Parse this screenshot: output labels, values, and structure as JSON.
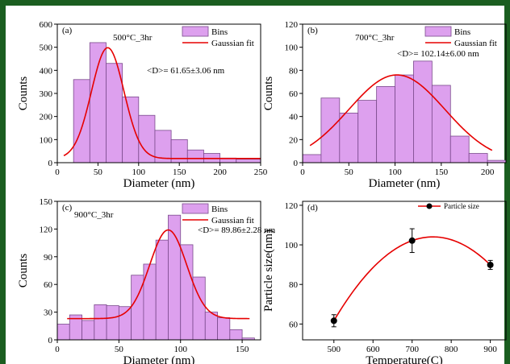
{
  "chart_data": [
    {
      "type": "bar",
      "panel": "(a)",
      "annotation": "500°C_3hr",
      "stat": "<D>= 61.65±3.06 nm",
      "xlabel": "Diameter (nm)",
      "ylabel": "Counts",
      "xlim": [
        0,
        250
      ],
      "ylim": [
        0,
        600
      ],
      "xticks": [
        0,
        50,
        100,
        150,
        200,
        250
      ],
      "yticks": [
        0,
        100,
        200,
        300,
        400,
        500,
        600
      ],
      "bin_edges": [
        20,
        40,
        60,
        80,
        100,
        120,
        140,
        160,
        180,
        200,
        220,
        250
      ],
      "values": [
        360,
        520,
        430,
        285,
        205,
        140,
        100,
        55,
        40,
        20,
        15
      ],
      "fit": {
        "label": "Gaussian fit",
        "baseline": 18,
        "amplitude": 480,
        "center": 62,
        "sigma": 20,
        "x_from": 8,
        "x_to": 250
      },
      "legend": [
        "Bins",
        "Gaussian fit"
      ]
    },
    {
      "type": "bar",
      "panel": "(b)",
      "annotation": "700°C_3hr",
      "stat": "<D>= 102.14±6.00 nm",
      "xlabel": "Diameter (nm)",
      "ylabel": "Counts",
      "xlim": [
        0,
        220
      ],
      "ylim": [
        0,
        120
      ],
      "xticks": [
        0,
        50,
        100,
        150,
        200
      ],
      "yticks": [
        0,
        20,
        40,
        60,
        80,
        100,
        120
      ],
      "bin_edges": [
        0,
        20,
        40,
        60,
        80,
        100,
        120,
        140,
        160,
        180,
        200,
        220
      ],
      "values": [
        7,
        56,
        43,
        54,
        66,
        76,
        88,
        67,
        23,
        8,
        2
      ],
      "fit": {
        "label": "Gaussian fit",
        "baseline": 0,
        "amplitude": 76,
        "center": 102,
        "sigma": 52,
        "x_from": 8,
        "x_to": 205
      },
      "legend": [
        "Bins",
        "Gaussian fit"
      ]
    },
    {
      "type": "bar",
      "panel": "(c)",
      "annotation": "900°C_3hr",
      "stat": "<D>= 89.86±2.28 nm",
      "xlabel": "Diameter (nm)",
      "ylabel": "Counts",
      "xlim": [
        0,
        165
      ],
      "ylim": [
        0,
        150
      ],
      "xticks": [
        0,
        50,
        100,
        150
      ],
      "yticks": [
        0,
        30,
        60,
        90,
        120,
        150
      ],
      "bin_edges": [
        0,
        10,
        20,
        30,
        40,
        50,
        60,
        70,
        80,
        90,
        100,
        110,
        120,
        130,
        140,
        150,
        160
      ],
      "values": [
        17,
        27,
        21,
        38,
        37,
        36,
        70,
        82,
        108,
        135,
        103,
        68,
        30,
        24,
        11,
        2
      ],
      "fit": {
        "label": "Gaussian fit",
        "baseline": 23,
        "amplitude": 96,
        "center": 90,
        "sigma": 15,
        "x_from": 8,
        "x_to": 156
      },
      "legend": [
        "Bins",
        "Gaussian fit"
      ]
    },
    {
      "type": "line",
      "panel": "(d)",
      "xlabel": "Temperature(C)",
      "ylabel": "Particle size(nm)",
      "xlim": [
        420,
        940
      ],
      "ylim": [
        52,
        122
      ],
      "xticks": [
        500,
        600,
        700,
        800,
        900
      ],
      "yticks": [
        60,
        80,
        100,
        120
      ],
      "series": [
        {
          "name": "Particle size",
          "x": [
            500,
            700,
            900
          ],
          "y": [
            61.65,
            102.14,
            89.86
          ],
          "error": [
            3.06,
            6.0,
            2.28
          ]
        }
      ]
    }
  ],
  "colors": {
    "bar_fill": "#dda0ee",
    "bar_stroke": "#7a4a8c",
    "fit_line": "#e60000",
    "marker": "#000000",
    "frame": "#1b5e20"
  }
}
